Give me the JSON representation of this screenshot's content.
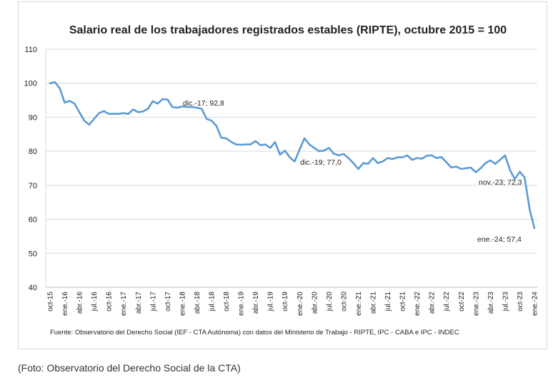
{
  "chart_data": {
    "type": "line",
    "title": "Salario real de los trabajadores registrados estables (RIPTE), octubre 2015 = 100",
    "categories": [
      "oct-15",
      null,
      null,
      "ene.-16",
      null,
      null,
      "abr.-16",
      null,
      null,
      "jul.-16",
      null,
      null,
      "oct-16",
      null,
      null,
      "ene.-17",
      null,
      null,
      "abr.-17",
      null,
      null,
      "jul.-17",
      null,
      null,
      "oct-17",
      null,
      null,
      "ene.-18",
      null,
      null,
      "abr.-18",
      null,
      null,
      "jul.-18",
      null,
      null,
      "oct-18",
      null,
      null,
      "ene.-19",
      null,
      null,
      "abr.-19",
      null,
      null,
      "jul.-19",
      null,
      null,
      "oct-19",
      null,
      null,
      "ene.-20",
      null,
      null,
      "abr.-20",
      null,
      null,
      "jul.-20",
      null,
      null,
      "oct-20",
      null,
      null,
      "ene.-21",
      null,
      null,
      "abr.-21",
      null,
      null,
      "jul.-21",
      null,
      null,
      "oct-21",
      null,
      null,
      "ene.-22",
      null,
      null,
      "abr.-22",
      null,
      null,
      "jul.-22",
      null,
      null,
      "oct-22",
      null,
      null,
      "ene.-23",
      null,
      null,
      "abr.-23",
      null,
      null,
      "jul.-23",
      null,
      null,
      "oct-23",
      null,
      null,
      "ene.-24"
    ],
    "values": [
      100,
      100.3,
      98.5,
      94.3,
      94.8,
      94,
      91.5,
      89,
      87.8,
      89.5,
      91.2,
      91.8,
      91,
      91,
      91,
      91.2,
      91,
      92.3,
      91.5,
      91.7,
      92.5,
      94.7,
      94,
      95.3,
      95.2,
      93,
      92.8,
      93.2,
      93,
      93,
      92.8,
      92.5,
      89.5,
      89,
      87.5,
      84,
      83.8,
      82.8,
      82,
      81.9,
      82,
      82,
      83,
      81.8,
      82,
      81,
      82.7,
      79,
      80.2,
      78.2,
      77.0,
      80.5,
      83.8,
      82,
      81,
      80,
      80.2,
      81,
      79.3,
      78.8,
      79.2,
      78,
      76.5,
      74.8,
      76.5,
      76.3,
      78,
      76.5,
      77,
      78,
      77.7,
      78.2,
      78.2,
      78.8,
      77.5,
      78,
      77.8,
      78.7,
      78.8,
      78,
      78.3,
      76.8,
      75.2,
      75.5,
      74.8,
      75,
      75.2,
      73.8,
      75,
      76.5,
      77.3,
      76.3,
      77.5,
      78.8,
      74.5,
      71.8,
      74,
      72.3,
      63,
      57.4
    ],
    "color": "#5b9bd5",
    "ylim": [
      40,
      110
    ],
    "yticks": [
      40,
      50,
      60,
      70,
      80,
      90,
      100,
      110
    ],
    "grid": true,
    "annotations": [
      "dic.-17; 92,8",
      "dic.-19; 77,0",
      "nov.-23; 72,3",
      "ene.-24; 57,4"
    ],
    "source": "Fuente: Observatorio del Derecho Social (IEF - CTA Autónoma) con datos del Ministerio de Trabajo - RIPTE, IPC - CABA e IPC - INDEC"
  },
  "caption": "(Foto: Observatorio del Derecho Social de la CTA)"
}
